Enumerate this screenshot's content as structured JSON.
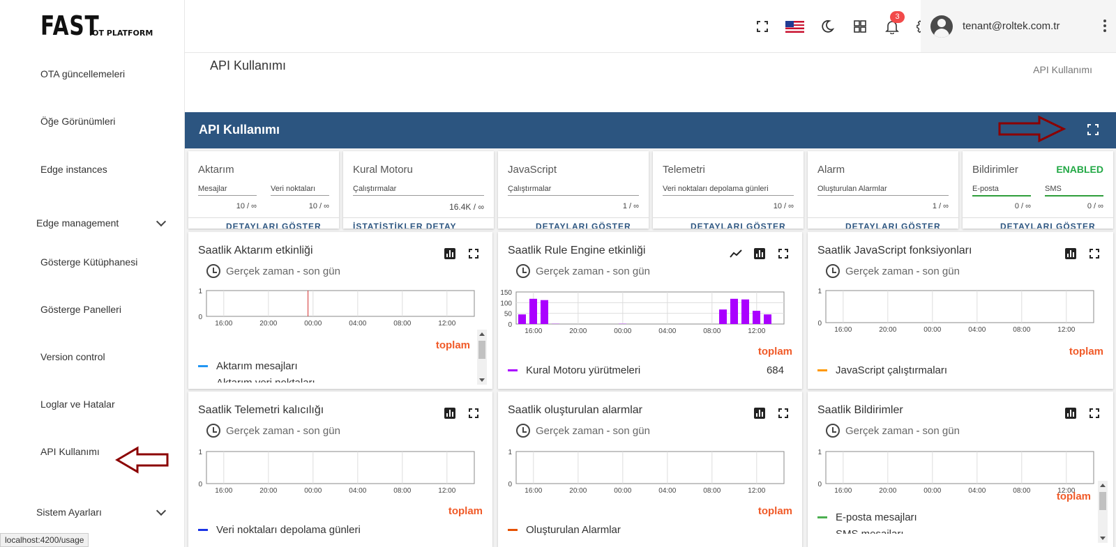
{
  "logo": {
    "main": "FAST",
    "sub": "IOT PLATFORM"
  },
  "sidebar": {
    "items": [
      {
        "label": "OTA güncellemeleri"
      },
      {
        "label": "Öğe Görünümleri"
      },
      {
        "label": "Edge instances"
      },
      {
        "label": "Edge management",
        "group": true
      },
      {
        "label": "Gösterge Kütüphanesi"
      },
      {
        "label": "Gösterge Panelleri"
      },
      {
        "label": "Version control"
      },
      {
        "label": "Loglar ve Hatalar"
      },
      {
        "label": "API Kullanımı",
        "active": true
      },
      {
        "label": "Sistem Ayarları",
        "group": true
      }
    ]
  },
  "statusbar": {
    "url": "localhost:4200/usage"
  },
  "topbar": {
    "notification_count": "3",
    "user_email": "tenant@roltek.com.tr"
  },
  "page": {
    "title": "API Kullanımı",
    "breadcrumb": "API Kullanımı"
  },
  "dashboard": {
    "title": "API Kullanımı"
  },
  "summary_cards": [
    {
      "title": "Aktarım",
      "fields": [
        {
          "label": "Mesajlar",
          "value": "10 / ∞"
        },
        {
          "label": "Veri noktaları",
          "value": "10 / ∞"
        }
      ],
      "footer": "DETAYLARI GÖSTER"
    },
    {
      "title": "Kural Motoru",
      "fields": [
        {
          "label": "Çalıştırmalar",
          "value": "16.4K / ∞"
        }
      ],
      "footer": "İSTATİSTİKLER      DETAY"
    },
    {
      "title": "JavaScript",
      "fields": [
        {
          "label": "Çalıştırmalar",
          "value": "1 / ∞"
        }
      ],
      "footer": "DETAYLARI GÖSTER"
    },
    {
      "title": "Telemetri",
      "fields": [
        {
          "label": "Veri noktaları depolama günleri",
          "value": "10 / ∞"
        }
      ],
      "footer": "DETAYLARI GÖSTER"
    },
    {
      "title": "Alarm",
      "fields": [
        {
          "label": "Oluşturulan Alarmlar",
          "value": "1 / ∞"
        }
      ],
      "footer": "DETAYLARI GÖSTER"
    },
    {
      "title": "Bildirimler",
      "status": "ENABLED",
      "fields": [
        {
          "label": "E-posta",
          "value": "0 / ∞"
        },
        {
          "label": "SMS",
          "value": "0 / ∞"
        }
      ],
      "footer": "DETAYLARI GÖSTER"
    }
  ],
  "timewindow": {
    "label": "Gerçek zaman",
    "sep": "-",
    "range": "son gün"
  },
  "x_ticks": [
    "16:00",
    "20:00",
    "00:00",
    "04:00",
    "08:00",
    "12:00"
  ],
  "total_label": "toplam",
  "chart_data": [
    {
      "type": "bar",
      "title": "Saatlik Aktarım etkinliği",
      "ylim": [
        0,
        1
      ],
      "yticks": [
        "1",
        "0"
      ],
      "series": [
        {
          "name": "Aktarım mesajları",
          "color": "#2196f3"
        }
      ],
      "legend_partial": "Aktarım veri noktaları",
      "marker_hour": 9.1
    },
    {
      "type": "bar",
      "title": "Saatlik Rule Engine etkinliği",
      "ylim": [
        0,
        150
      ],
      "yticks": [
        "150",
        "100",
        "50",
        "0"
      ],
      "series": [
        {
          "name": "Kural Motoru yürütmeleri",
          "color": "#aa00ff",
          "total": "684",
          "bars": [
            {
              "h": 0,
              "v": 45
            },
            {
              "h": 1,
              "v": 118
            },
            {
              "h": 2,
              "v": 112
            },
            {
              "h": 3,
              "v": 1
            },
            {
              "h": 9,
              "v": 1
            },
            {
              "h": 18,
              "v": 68
            },
            {
              "h": 19,
              "v": 118
            },
            {
              "h": 20,
              "v": 115
            },
            {
              "h": 21,
              "v": 62
            },
            {
              "h": 22,
              "v": 45
            }
          ]
        }
      ]
    },
    {
      "type": "bar",
      "title": "Saatlik JavaScript fonksiyonları",
      "ylim": [
        0,
        1
      ],
      "yticks": [
        "1",
        "0"
      ],
      "series": [
        {
          "name": "JavaScript çalıştırmaları",
          "color": "#ff9800"
        }
      ]
    },
    {
      "type": "bar",
      "title": "Saatlik Telemetri kalıcılığı",
      "ylim": [
        0,
        1
      ],
      "yticks": [
        "1",
        "0"
      ],
      "series": [
        {
          "name": "Veri noktaları depolama günleri",
          "color": "#1a33e6"
        }
      ]
    },
    {
      "type": "bar",
      "title": "Saatlik oluşturulan alarmlar",
      "ylim": [
        0,
        1
      ],
      "yticks": [
        "1",
        "0"
      ],
      "series": [
        {
          "name": "Oluşturulan Alarmlar",
          "color": "#e65100"
        }
      ]
    },
    {
      "type": "bar",
      "title": "Saatlik Bildirimler",
      "ylim": [
        0,
        1
      ],
      "yticks": [
        "1",
        "0"
      ],
      "series": [
        {
          "name": "E-posta mesajları",
          "color": "#4caf50"
        }
      ],
      "legend_partial": "SMS mesajları"
    }
  ]
}
